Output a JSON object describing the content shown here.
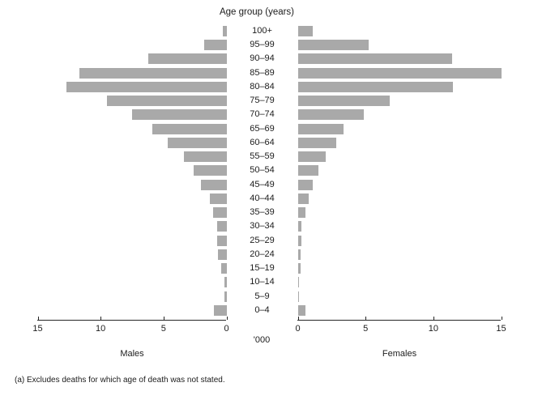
{
  "footnote": "(a) Excludes deaths for which age of death was not stated.",
  "chart_data": {
    "type": "bar",
    "variant": "population-pyramid",
    "title": "Age group (years)",
    "unit_label": "'000",
    "left_series_label": "Males",
    "right_series_label": "Females",
    "bar_color": "#a9a9a9",
    "axis_color": "#262626",
    "categories": [
      "100+",
      "95–99",
      "90–94",
      "85–89",
      "80–84",
      "75–79",
      "70–74",
      "65–69",
      "60–64",
      "55–59",
      "50–54",
      "45–49",
      "40–44",
      "35–39",
      "30–34",
      "25–29",
      "20–24",
      "15–19",
      "10–14",
      "5–9",
      "0–4"
    ],
    "series": [
      {
        "name": "Males",
        "values": [
          0.3,
          1.8,
          6.2,
          11.7,
          12.7,
          9.5,
          7.5,
          5.9,
          4.7,
          3.4,
          2.6,
          2.0,
          1.3,
          1.05,
          0.75,
          0.75,
          0.7,
          0.45,
          0.15,
          0.15,
          1.0
        ]
      },
      {
        "name": "Females",
        "values": [
          1.1,
          5.25,
          11.4,
          15.0,
          11.45,
          6.8,
          4.9,
          3.4,
          2.85,
          2.05,
          1.55,
          1.1,
          0.8,
          0.55,
          0.25,
          0.25,
          0.2,
          0.2,
          0.1,
          0.1,
          0.55
        ]
      }
    ],
    "axis": {
      "min": 0,
      "max": 15,
      "male_tick_labels": [
        "15",
        "10",
        "5",
        "0"
      ],
      "female_tick_labels": [
        "0",
        "5",
        "10",
        "15"
      ],
      "grid": false,
      "orientation": "horizontal-diverging"
    }
  }
}
